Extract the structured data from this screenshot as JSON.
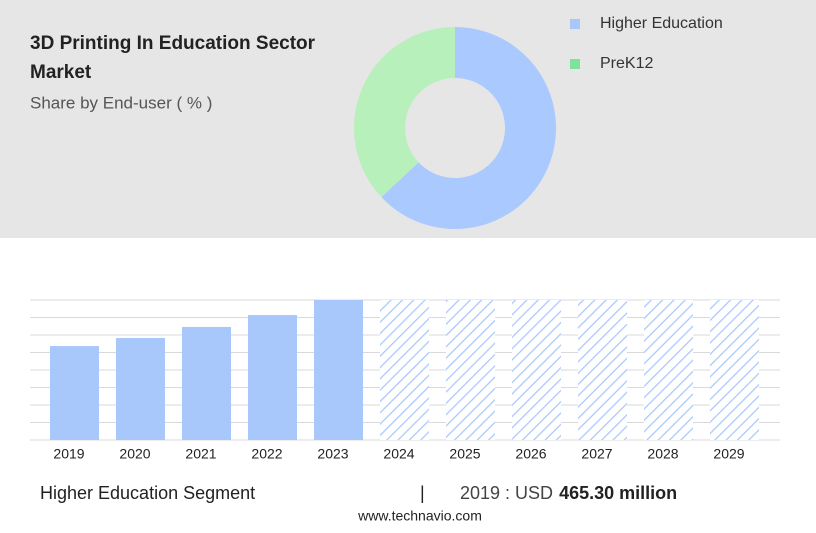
{
  "chart_data": [
    {
      "type": "donut",
      "title_lines": [
        "3D Printing In Education Sector",
        "Market"
      ],
      "subtitle": "Share by End-user ( % )",
      "categories": [
        "Higher Education",
        "PreK12"
      ],
      "values": [
        63,
        37
      ],
      "colors": [
        "#a9c9ff",
        "#b8f0bb"
      ],
      "legend_colors": [
        "#a8c8fc",
        "#7ee39a"
      ]
    },
    {
      "type": "bar",
      "categories": [
        "2019",
        "2020",
        "2021",
        "2022",
        "2023",
        "2024",
        "2025",
        "2026",
        "2027",
        "2028",
        "2029"
      ],
      "values": [
        5.37,
        5.83,
        6.46,
        7.14,
        8,
        null,
        null,
        null,
        null,
        null,
        null
      ],
      "color": "#a8c8fc",
      "ylim": [
        0,
        8
      ],
      "yticks": [
        0,
        1,
        2,
        3,
        4,
        5,
        6,
        7,
        8
      ],
      "grid": true
    }
  ],
  "footer": {
    "segment": "Higher Education Segment",
    "separator": "|",
    "year_label": "2019 : USD",
    "value": "465.30 million",
    "source": "www.technavio.com"
  }
}
